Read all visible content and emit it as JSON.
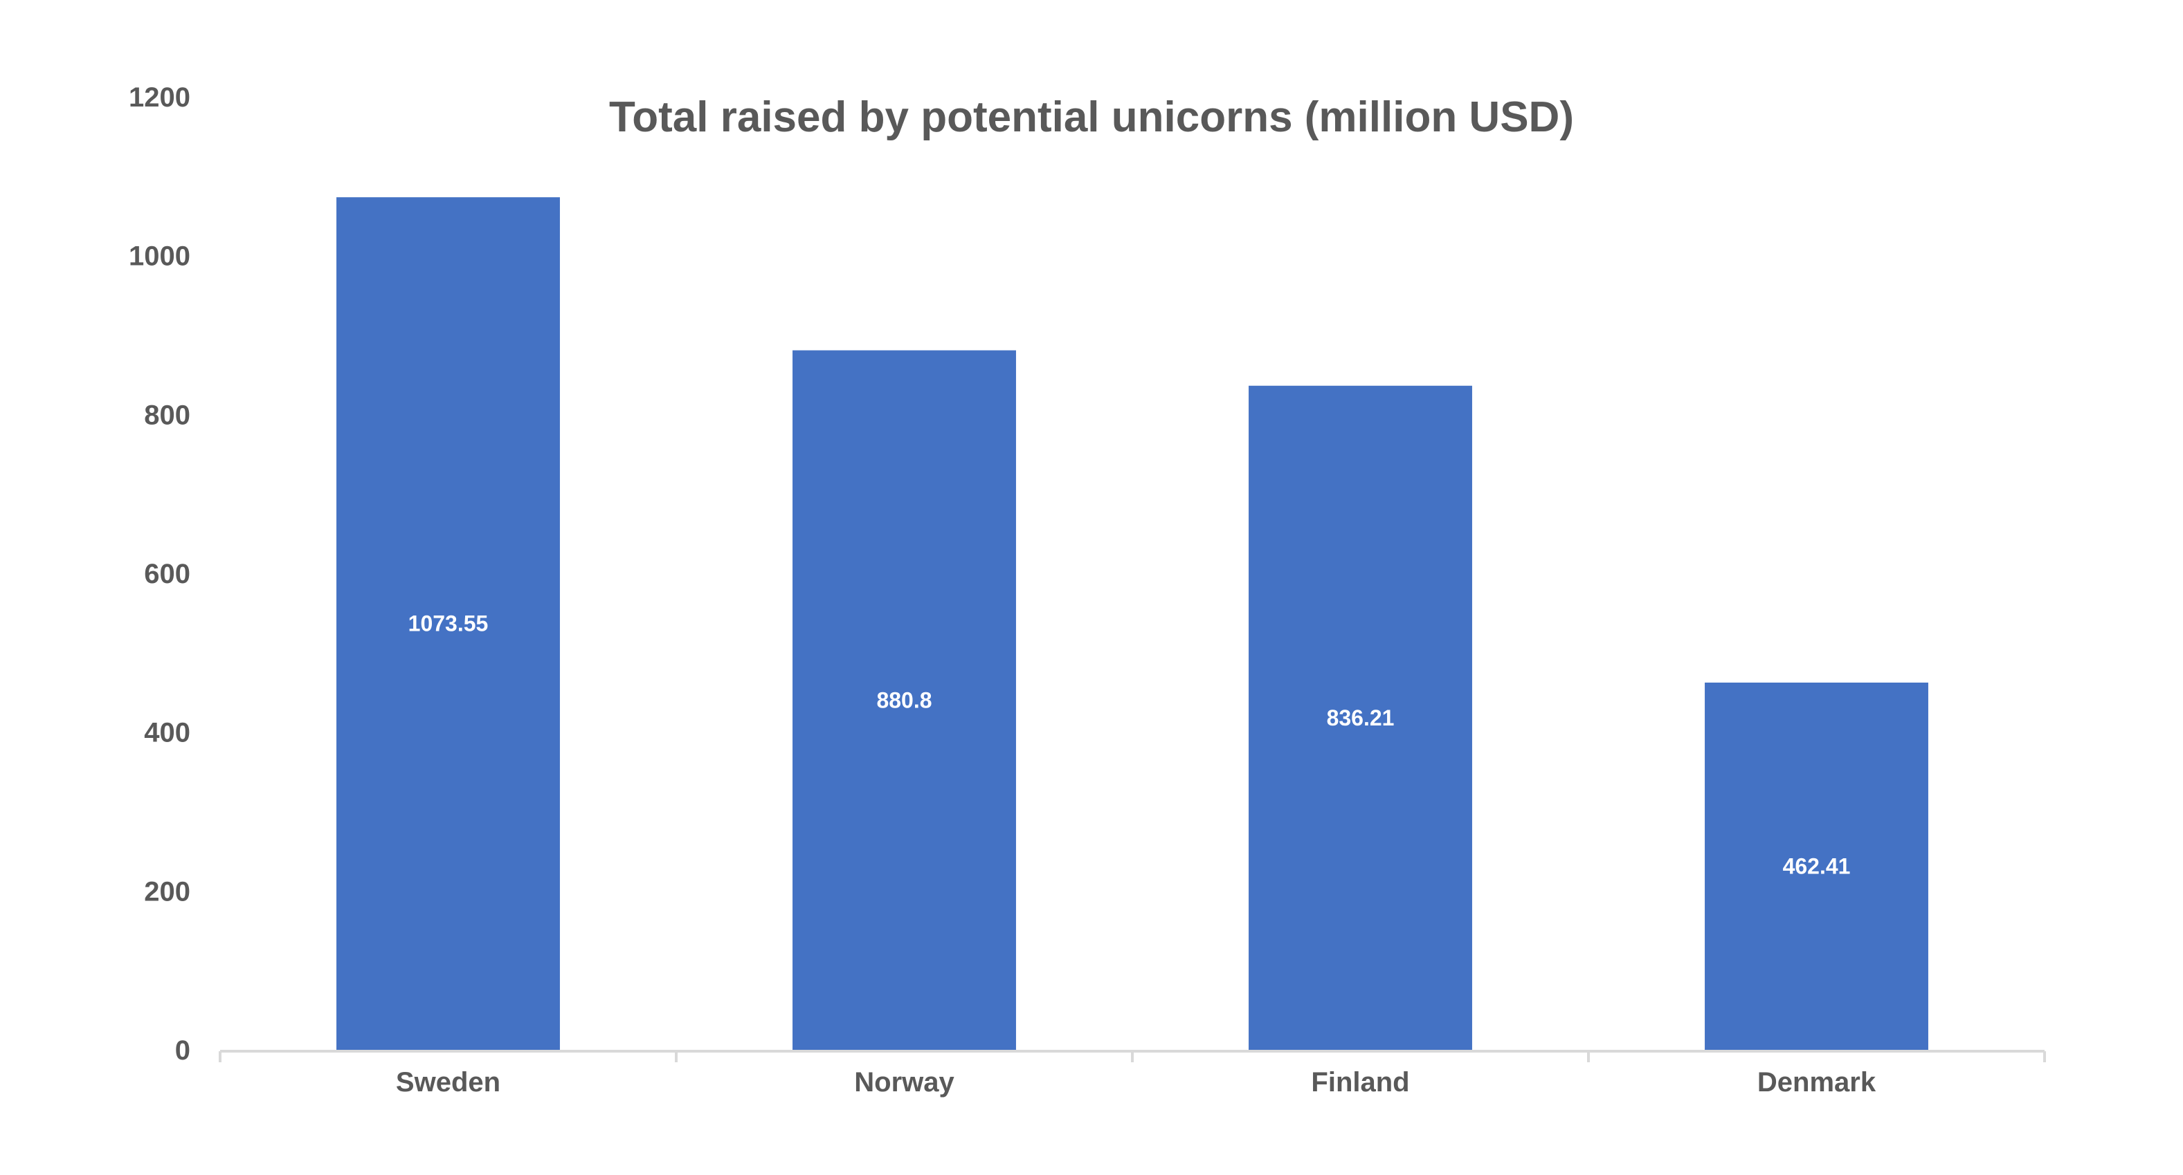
{
  "chart_data": {
    "type": "bar",
    "title": "Total raised by potential unicorns (million USD)",
    "xlabel": "",
    "ylabel": "",
    "categories": [
      "Sweden",
      "Norway",
      "Finland",
      "Denmark"
    ],
    "values": [
      1073.55,
      880.8,
      836.21,
      462.41
    ],
    "data_labels": [
      "1073.55",
      "880.8",
      "836.21",
      "462.41"
    ],
    "yticks": [
      "0",
      "200",
      "400",
      "600",
      "800",
      "1000",
      "1200"
    ],
    "ylim": [
      0,
      1200
    ],
    "grid": false,
    "legend": "none",
    "colors": {
      "bar": "#4472C4",
      "text": "#595959",
      "axis": "#D9D9D9",
      "data_label": "#FFFFFF"
    }
  }
}
